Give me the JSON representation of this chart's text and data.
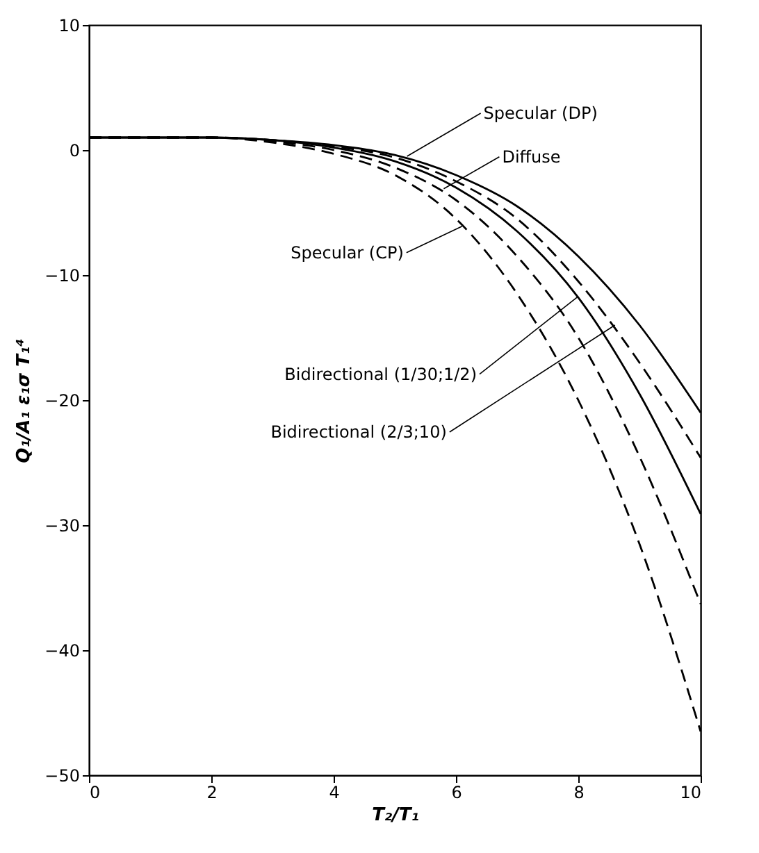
{
  "chart_data": {
    "type": "line",
    "xlabel": "T₂/T₁",
    "ylabel": "Q₁/A₁ ε₁σ T₁⁴",
    "x": [
      0,
      1,
      2,
      3,
      4,
      5,
      6,
      7,
      8,
      9,
      10
    ],
    "series": [
      {
        "color": "#000000",
        "line_style": "solid",
        "values": [
          1.0,
          1.0,
          1.0,
          0.8,
          0.4,
          -0.4,
          -2.0,
          -4.5,
          -8.5,
          -14.0,
          -21.0
        ]
      },
      {
        "color": "#000000",
        "line_style": "dashed",
        "values": [
          1.0,
          1.0,
          1.0,
          0.8,
          0.3,
          -0.6,
          -2.5,
          -5.5,
          -10.5,
          -17.0,
          -24.6
        ]
      },
      {
        "color": "#000000",
        "line_style": "solid",
        "values": [
          1.0,
          1.0,
          1.0,
          0.8,
          0.2,
          -0.9,
          -3.0,
          -6.5,
          -11.8,
          -19.5,
          -29.1
        ]
      },
      {
        "color": "#000000",
        "line_style": "dashed",
        "values": [
          1.0,
          1.0,
          1.0,
          0.7,
          0.0,
          -1.4,
          -4.0,
          -8.5,
          -15.0,
          -24.5,
          -36.3
        ]
      },
      {
        "color": "#000000",
        "line_style": "dashed",
        "values": [
          1.0,
          1.0,
          1.0,
          0.6,
          -0.3,
          -2.0,
          -5.5,
          -11.5,
          -20.0,
          -31.5,
          -46.5
        ]
      }
    ],
    "annotations": [
      {
        "text": "Specular (DP)",
        "x": 5.2,
        "y": -0.5
      },
      {
        "text": "Diffuse",
        "x": 5.8,
        "y": -3.1
      },
      {
        "text": "Specular (CP)",
        "x": 6.1,
        "y": -6.1
      },
      {
        "text": "Bidirectional (1/30;1/2)",
        "x": 8.0,
        "y": -11.7
      },
      {
        "text": "Bidirectional (2/3;10)",
        "x": 8.6,
        "y": -14.0
      }
    ],
    "xlim": [
      0,
      10
    ],
    "ylim": [
      -50,
      10
    ],
    "xticks": [
      0,
      2,
      4,
      6,
      8,
      10
    ],
    "yticks": [
      10,
      0,
      -10,
      -20,
      -30,
      -40,
      -50
    ]
  }
}
